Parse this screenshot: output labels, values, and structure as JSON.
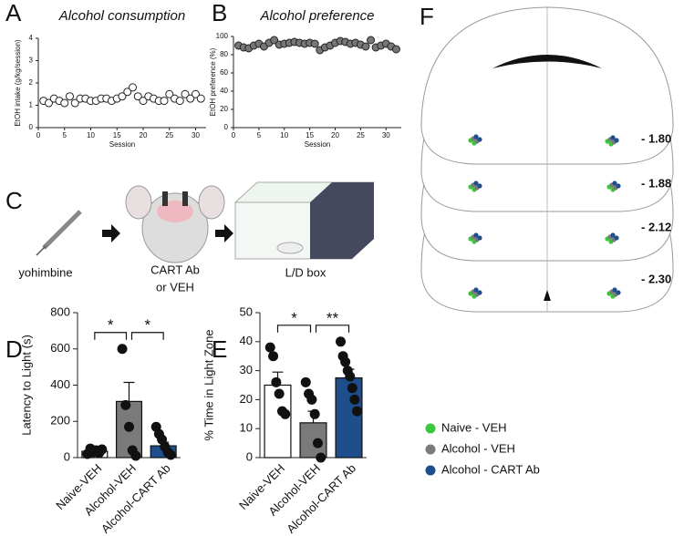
{
  "panel_labels": [
    "A",
    "B",
    "C",
    "D",
    "E",
    "F"
  ],
  "panel_c": {
    "labels": [
      "yohimbine",
      "CART Ab",
      "or VEH",
      "L/D box"
    ]
  },
  "panel_f": {
    "levels": [
      "- 1.80",
      "- 1.88",
      "- 2.12",
      "- 2.30"
    ],
    "legend": [
      {
        "label": "Naive - VEH",
        "color": "#3cc63c"
      },
      {
        "label": "Alcohol - VEH",
        "color": "#7a7a7a"
      },
      {
        "label": "Alcohol - CART Ab",
        "color": "#1f4e8c"
      }
    ]
  },
  "chart_data": [
    {
      "type": "scatter",
      "title": "Alcohol consumption",
      "xlabel": "Session",
      "ylabel": "EtOH intake (g/kg/session)",
      "x": [
        1,
        2,
        3,
        4,
        5,
        6,
        7,
        8,
        9,
        10,
        11,
        12,
        13,
        14,
        15,
        16,
        17,
        18,
        19,
        20,
        21,
        22,
        23,
        24,
        25,
        26,
        27,
        28,
        29,
        30,
        31
      ],
      "values": [
        1.2,
        1.1,
        1.3,
        1.2,
        1.1,
        1.4,
        1.1,
        1.3,
        1.3,
        1.2,
        1.2,
        1.3,
        1.3,
        1.2,
        1.3,
        1.4,
        1.6,
        1.8,
        1.4,
        1.2,
        1.4,
        1.3,
        1.2,
        1.2,
        1.5,
        1.3,
        1.2,
        1.5,
        1.3,
        1.5,
        1.3
      ],
      "color": "#222",
      "marker_fill": "#fff",
      "xlim": [
        0,
        32
      ],
      "xticks": [
        0,
        5,
        10,
        15,
        20,
        25,
        30
      ],
      "ylim": [
        0,
        4
      ],
      "yticks": [
        0,
        1,
        2,
        3,
        4
      ]
    },
    {
      "type": "scatter",
      "title": "Alcohol preference",
      "xlabel": "Session",
      "ylabel": "EtOH preference (%)",
      "x": [
        1,
        2,
        3,
        4,
        5,
        6,
        7,
        8,
        9,
        10,
        11,
        12,
        13,
        14,
        15,
        16,
        17,
        18,
        19,
        20,
        21,
        22,
        23,
        24,
        25,
        26,
        27,
        28,
        29,
        30,
        31,
        32
      ],
      "values": [
        90,
        88,
        87,
        90,
        92,
        89,
        93,
        96,
        91,
        92,
        93,
        94,
        93,
        92,
        93,
        92,
        85,
        88,
        90,
        93,
        95,
        94,
        92,
        93,
        91,
        89,
        96,
        88,
        90,
        92,
        89,
        86
      ],
      "color": "#222",
      "marker_fill": "#777",
      "xlim": [
        0,
        33
      ],
      "xticks": [
        0,
        5,
        10,
        15,
        20,
        25,
        30
      ],
      "ylim": [
        0,
        100
      ],
      "yticks": [
        0,
        20,
        40,
        60,
        80,
        100
      ]
    },
    {
      "type": "bar",
      "ylabel": "Latency to Light (s)",
      "categories": [
        "Naive-VEH",
        "Alcohol-VEH",
        "Alcohol-CART Ab"
      ],
      "values": [
        35,
        310,
        65
      ],
      "errors": [
        10,
        105,
        20
      ],
      "colors": [
        "#ffffff",
        "#7a7a7a",
        "#1f4e8c"
      ],
      "points": [
        [
          20,
          50,
          30,
          40,
          25,
          45
        ],
        [
          600,
          290,
          170,
          40,
          10
        ],
        [
          170,
          130,
          100,
          60,
          30,
          15
        ]
      ],
      "ylim": [
        0,
        800
      ],
      "yticks": [
        0,
        200,
        400,
        600,
        800
      ],
      "significance": [
        {
          "from": 0,
          "to": 1,
          "label": "*"
        },
        {
          "from": 1,
          "to": 2,
          "label": "*"
        }
      ]
    },
    {
      "type": "bar",
      "ylabel": "% Time in Light Zone",
      "categories": [
        "Naive-VEH",
        "Alcohol-VEH",
        "Alcohol-CART Ab"
      ],
      "values": [
        25,
        12,
        27.5
      ],
      "errors": [
        4.5,
        4,
        3
      ],
      "colors": [
        "#ffffff",
        "#7a7a7a",
        "#1f4e8c"
      ],
      "points": [
        [
          38,
          35,
          26,
          22,
          16,
          15
        ],
        [
          26,
          22,
          20,
          15,
          5,
          0
        ],
        [
          40,
          35,
          33,
          30,
          28,
          24,
          20,
          16
        ]
      ],
      "ylim": [
        0,
        50
      ],
      "yticks": [
        0,
        10,
        20,
        30,
        40,
        50
      ],
      "significance": [
        {
          "from": 0,
          "to": 1,
          "label": "*"
        },
        {
          "from": 1,
          "to": 2,
          "label": "**"
        }
      ]
    }
  ]
}
